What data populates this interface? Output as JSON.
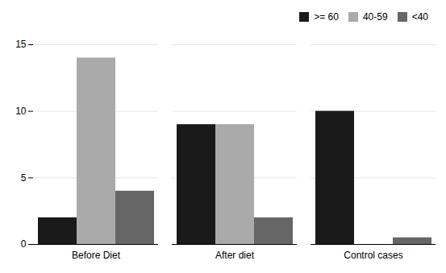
{
  "chart_data": {
    "type": "bar",
    "categories": [
      "Before Diet",
      "After diet",
      "Control cases"
    ],
    "series": [
      {
        "name": ">= 60",
        "color": "#1a1a1a",
        "values": [
          2,
          9,
          10
        ]
      },
      {
        "name": "40-59",
        "color": "#aaaaaa",
        "values": [
          14,
          9,
          0
        ]
      },
      {
        "name": "<40",
        "color": "#666666",
        "values": [
          4,
          2,
          0.5
        ]
      }
    ],
    "ylim": [
      0,
      15
    ],
    "yticks": [
      0,
      5,
      10,
      15
    ],
    "grid": true,
    "legend": "upper right"
  }
}
